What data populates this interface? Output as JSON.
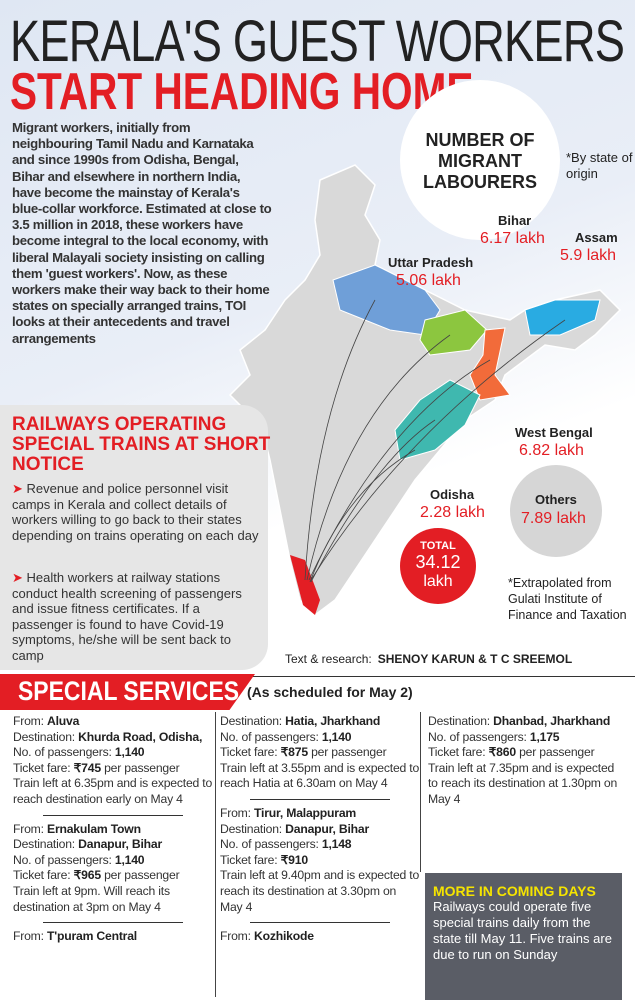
{
  "title": {
    "line1": "KERALA'S GUEST WORKERS",
    "line2": "START HEADING HOME"
  },
  "intro": "Migrant workers, initially from neighbouring Tamil Nadu and Karnataka and since 1990s from Odisha, Bengal, Bihar and elsewhere in northern India, have become the mainstay of Kerala's blue-collar workforce. Estimated at close to 3.5 million in 2018, these workers have become integral to the local economy, with liberal Malayali society insisting on calling them 'guest workers'. Now, as these workers make their way back to their home states on specially arranged trains, TOI looks at their antecedents and travel arrangements",
  "map": {
    "heading": "NUMBER OF MIGRANT LABOURERS",
    "note": "*By state of origin",
    "states": [
      {
        "name": "Bihar",
        "value": "6.17 lakh",
        "color": "#8cc63f"
      },
      {
        "name": "Assam",
        "value": "5.9 lakh",
        "color": "#29abe2"
      },
      {
        "name": "Uttar Pradesh",
        "value": "5.06 lakh",
        "color": "#6f9fd8"
      },
      {
        "name": "West Bengal",
        "value": "6.82 lakh",
        "color": "#f26b3a"
      },
      {
        "name": "Odisha",
        "value": "2.28 lakh",
        "color": "#3fb8af"
      },
      {
        "name": "Others",
        "value": "7.89 lakh",
        "color": "#c8c8c8"
      }
    ],
    "total_label": "TOTAL",
    "total_value": "34.12",
    "total_unit": "lakh",
    "footnote": "*Extrapolated from Gulati Institute of Finance and Taxation",
    "kerala_color": "#e31e24"
  },
  "railways": {
    "heading": "RAILWAYS OPERATING SPECIAL TRAINS AT SHORT NOTICE",
    "points": [
      "Revenue and police personnel visit camps in Kerala and collect details of workers willing to go back to their states depending on trains operating on each day",
      "Health workers at railway stations conduct health screening of passengers and issue fitness certificates. If a passenger is found to have Covid-19 symptoms, he/she will be sent back to camp"
    ]
  },
  "credit": {
    "label": "Text & research:",
    "names": "SHENOY KARUN & T C SREEMOL"
  },
  "special": {
    "title": "SPECIAL SERVICES",
    "subtitle": "(As scheduled for May 2)",
    "col1": [
      {
        "from": "Aluva",
        "dest": "Khurda Road, Odisha,",
        "pax": "1,140",
        "fare": "₹745",
        "fare_suffix": " per passenger",
        "note": "Train left at 6.35pm and is expected to reach destination early on May 4"
      },
      {
        "from": "Ernakulam Town",
        "dest": "Danapur, Bihar",
        "pax": "1,140",
        "fare": "₹965",
        "fare_suffix": " per passenger",
        "note": "Train left at 9pm. Will reach its destination at 3pm on May 4"
      },
      {
        "from": "T'puram Central"
      }
    ],
    "col2": [
      {
        "dest": "Hatia, Jharkhand",
        "pax": "1,140",
        "fare": "₹875",
        "fare_suffix": " per passenger",
        "note": "Train left at 3.55pm and is expected to reach Hatia at 6.30am on May 4"
      },
      {
        "from": "Tirur, Malappuram",
        "dest": "Danapur, Bihar",
        "pax": "1,148",
        "fare": "₹910",
        "fare_suffix": "",
        "note": "Train left at 9.40pm and is expected to reach its destination at 3.30pm on May 4"
      },
      {
        "from": "Kozhikode"
      }
    ],
    "col3": [
      {
        "dest": "Dhanbad, Jharkhand",
        "pax": "1,175",
        "fare": "₹860",
        "fare_suffix": " per passenger",
        "note": "Train left at 7.35pm and is expected to reach its destination at 1.30pm on May 4"
      }
    ],
    "labels": {
      "from": "From: ",
      "dest": "Destination: ",
      "pax": "No. of passengers: ",
      "fare": "Ticket fare: "
    },
    "more": {
      "heading": "MORE IN COMING DAYS",
      "text": "Railways could operate five special trains daily from the state till May 11. Five trains are due to run on Sunday"
    }
  }
}
